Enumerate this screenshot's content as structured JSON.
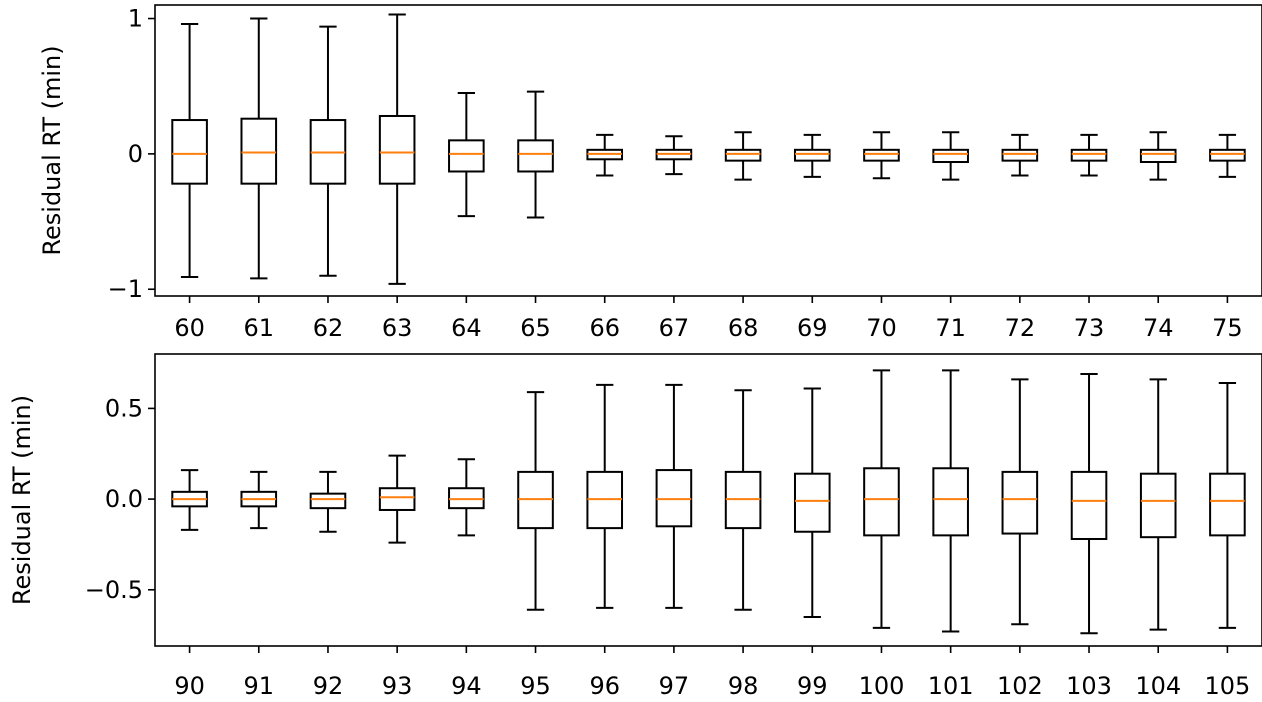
{
  "chart_data": [
    {
      "type": "boxplot",
      "title": "",
      "xlabel": "",
      "ylabel": "Residual RT (min)",
      "ylim": [
        -1.05,
        1.1
      ],
      "yticks": [
        -1,
        0,
        1
      ],
      "ytick_labels": [
        "−1",
        "0",
        "1"
      ],
      "grid": false,
      "categories": [
        "60",
        "61",
        "62",
        "63",
        "64",
        "65",
        "66",
        "67",
        "68",
        "69",
        "70",
        "71",
        "72",
        "73",
        "74",
        "75"
      ],
      "boxes": [
        {
          "whislo": -0.91,
          "q1": -0.22,
          "med": 0.0,
          "q3": 0.25,
          "whishi": 0.96
        },
        {
          "whislo": -0.92,
          "q1": -0.22,
          "med": 0.01,
          "q3": 0.26,
          "whishi": 1.0
        },
        {
          "whislo": -0.9,
          "q1": -0.22,
          "med": 0.01,
          "q3": 0.25,
          "whishi": 0.94
        },
        {
          "whislo": -0.96,
          "q1": -0.22,
          "med": 0.01,
          "q3": 0.28,
          "whishi": 1.03
        },
        {
          "whislo": -0.46,
          "q1": -0.13,
          "med": 0.0,
          "q3": 0.1,
          "whishi": 0.45
        },
        {
          "whislo": -0.47,
          "q1": -0.13,
          "med": 0.0,
          "q3": 0.1,
          "whishi": 0.46
        },
        {
          "whislo": -0.16,
          "q1": -0.04,
          "med": 0.0,
          "q3": 0.03,
          "whishi": 0.14
        },
        {
          "whislo": -0.15,
          "q1": -0.04,
          "med": 0.0,
          "q3": 0.03,
          "whishi": 0.13
        },
        {
          "whislo": -0.19,
          "q1": -0.05,
          "med": 0.0,
          "q3": 0.03,
          "whishi": 0.16
        },
        {
          "whislo": -0.17,
          "q1": -0.05,
          "med": 0.0,
          "q3": 0.03,
          "whishi": 0.14
        },
        {
          "whislo": -0.18,
          "q1": -0.05,
          "med": 0.0,
          "q3": 0.03,
          "whishi": 0.16
        },
        {
          "whislo": -0.19,
          "q1": -0.06,
          "med": 0.0,
          "q3": 0.03,
          "whishi": 0.16
        },
        {
          "whislo": -0.16,
          "q1": -0.05,
          "med": 0.0,
          "q3": 0.03,
          "whishi": 0.14
        },
        {
          "whislo": -0.16,
          "q1": -0.05,
          "med": 0.0,
          "q3": 0.03,
          "whishi": 0.14
        },
        {
          "whislo": -0.19,
          "q1": -0.06,
          "med": 0.0,
          "q3": 0.03,
          "whishi": 0.16
        },
        {
          "whislo": -0.17,
          "q1": -0.05,
          "med": 0.0,
          "q3": 0.03,
          "whishi": 0.14
        }
      ]
    },
    {
      "type": "boxplot",
      "title": "",
      "xlabel": "",
      "ylabel": "Residual RT (min)",
      "ylim": [
        -0.81,
        0.8
      ],
      "yticks": [
        -0.5,
        0.0,
        0.5
      ],
      "ytick_labels": [
        "−0.5",
        "0.0",
        "0.5"
      ],
      "grid": false,
      "categories": [
        "90",
        "91",
        "92",
        "93",
        "94",
        "95",
        "96",
        "97",
        "98",
        "99",
        "100",
        "101",
        "102",
        "103",
        "104",
        "105"
      ],
      "boxes": [
        {
          "whislo": -0.17,
          "q1": -0.04,
          "med": 0.0,
          "q3": 0.04,
          "whishi": 0.16
        },
        {
          "whislo": -0.16,
          "q1": -0.04,
          "med": 0.0,
          "q3": 0.04,
          "whishi": 0.15
        },
        {
          "whislo": -0.18,
          "q1": -0.05,
          "med": 0.0,
          "q3": 0.03,
          "whishi": 0.15
        },
        {
          "whislo": -0.24,
          "q1": -0.06,
          "med": 0.01,
          "q3": 0.06,
          "whishi": 0.24
        },
        {
          "whislo": -0.2,
          "q1": -0.05,
          "med": 0.0,
          "q3": 0.06,
          "whishi": 0.22
        },
        {
          "whislo": -0.61,
          "q1": -0.16,
          "med": 0.0,
          "q3": 0.15,
          "whishi": 0.59
        },
        {
          "whislo": -0.6,
          "q1": -0.16,
          "med": 0.0,
          "q3": 0.15,
          "whishi": 0.63
        },
        {
          "whislo": -0.6,
          "q1": -0.15,
          "med": 0.0,
          "q3": 0.16,
          "whishi": 0.63
        },
        {
          "whislo": -0.61,
          "q1": -0.16,
          "med": 0.0,
          "q3": 0.15,
          "whishi": 0.6
        },
        {
          "whislo": -0.65,
          "q1": -0.18,
          "med": -0.01,
          "q3": 0.14,
          "whishi": 0.61
        },
        {
          "whislo": -0.71,
          "q1": -0.2,
          "med": 0.0,
          "q3": 0.17,
          "whishi": 0.71
        },
        {
          "whislo": -0.73,
          "q1": -0.2,
          "med": 0.0,
          "q3": 0.17,
          "whishi": 0.71
        },
        {
          "whislo": -0.69,
          "q1": -0.19,
          "med": 0.0,
          "q3": 0.15,
          "whishi": 0.66
        },
        {
          "whislo": -0.74,
          "q1": -0.22,
          "med": -0.01,
          "q3": 0.15,
          "whishi": 0.69
        },
        {
          "whislo": -0.72,
          "q1": -0.21,
          "med": -0.01,
          "q3": 0.14,
          "whishi": 0.66
        },
        {
          "whislo": -0.71,
          "q1": -0.2,
          "med": -0.01,
          "q3": 0.14,
          "whishi": 0.64
        }
      ]
    }
  ],
  "colors": {
    "box_edge": "#000000",
    "median": "#ff7f0e",
    "background": "#ffffff"
  }
}
